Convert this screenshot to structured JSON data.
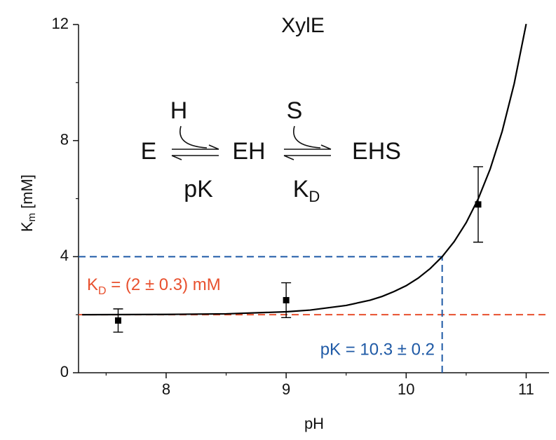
{
  "chart_data": {
    "type": "scatter",
    "title": "XylE",
    "xlabel": "pH",
    "ylabel": {
      "main": "K",
      "sub": "m",
      "unit": "[mM]"
    },
    "xlim": [
      7.27,
      11.19
    ],
    "ylim": [
      0,
      12
    ],
    "xticks": [
      8,
      9,
      10,
      11
    ],
    "yticks": [
      0,
      4,
      8,
      12
    ],
    "x_minor_ticks": [
      7.5,
      8.5,
      9.5,
      10.5
    ],
    "y_minor_ticks": [
      2,
      6,
      10
    ],
    "series": [
      {
        "type": "scatter",
        "color": "#000000",
        "x": [
          7.6,
          9.0,
          10.6
        ],
        "values": [
          1.8,
          2.5,
          5.8
        ],
        "errors": [
          0.4,
          0.6,
          1.3
        ]
      },
      {
        "type": "line",
        "color": "#000000",
        "x": [
          7.3,
          8.0,
          8.5,
          9.0,
          9.2,
          9.5,
          9.7,
          9.8,
          9.9,
          10.0,
          10.1,
          10.2,
          10.3,
          10.4,
          10.5,
          10.6,
          10.7,
          10.8,
          10.9,
          11.0
        ],
        "values": [
          2.0,
          2.01,
          2.03,
          2.1,
          2.16,
          2.32,
          2.5,
          2.63,
          2.8,
          3.0,
          3.26,
          3.59,
          4.0,
          4.52,
          5.17,
          5.99,
          7.02,
          8.32,
          9.96,
          12.02
        ]
      }
    ],
    "kd_line": {
      "value": 2,
      "color": "#e8502e",
      "label": {
        "main": "K",
        "sub": "D",
        "rest": " = (2 ± 0.3) mM"
      }
    },
    "pk_line": {
      "x": 10.3,
      "y": 4,
      "color": "#1f5aa6",
      "label": "pK = 10.3 ± 0.2"
    },
    "scheme": {
      "E": "E",
      "EH": "EH",
      "EHS": "EHS",
      "H": "H",
      "S": "S",
      "pK": "pK",
      "KD": {
        "main": "K",
        "sub": "D"
      }
    }
  }
}
